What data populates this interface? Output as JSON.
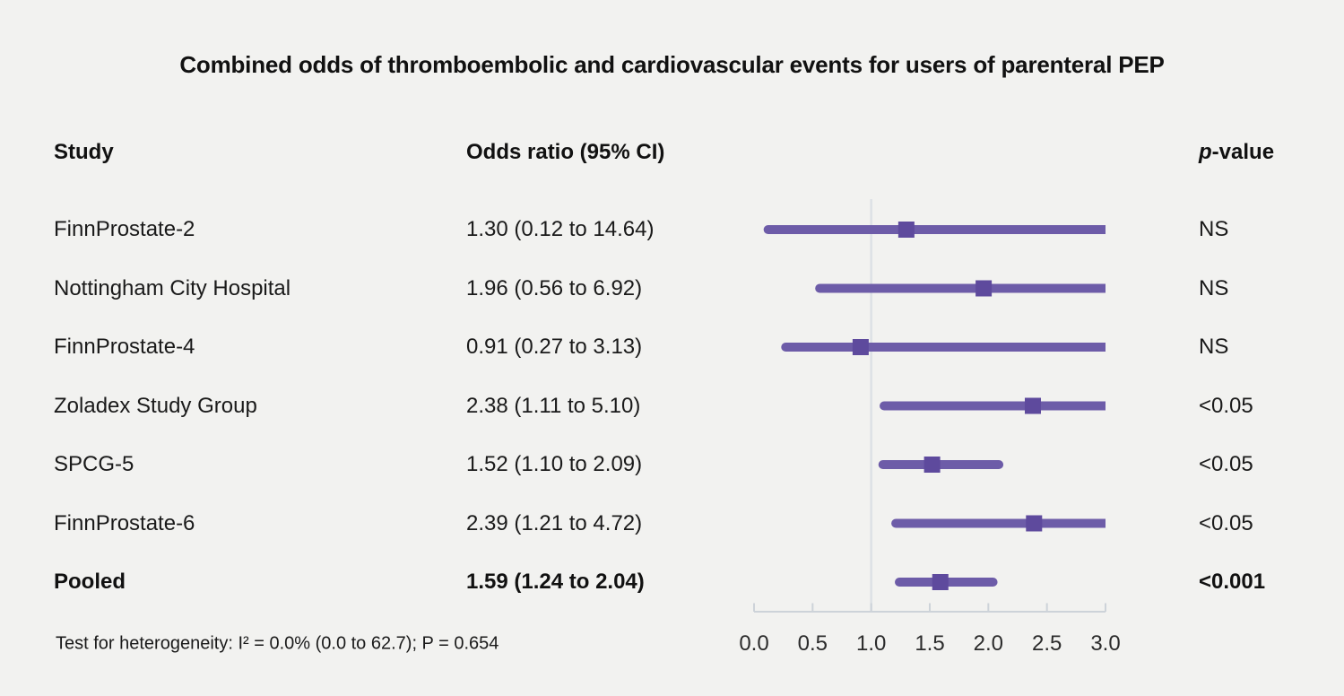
{
  "page": {
    "title": "Combined odds of thromboembolic and cardiovascular events for users of parenteral PEP",
    "background_color": "#f2f2f0"
  },
  "table": {
    "headers": {
      "study": "Study",
      "odds_ratio": "Odds ratio (95% CI)",
      "p_italic": "p",
      "p_suffix": "-value"
    }
  },
  "chart_data": {
    "type": "forest",
    "title": "Combined odds of thromboembolic and cardiovascular events for users of parenteral PEP",
    "xlabel": "",
    "xlim": [
      0.0,
      3.0
    ],
    "x_tick_values": [
      0.0,
      0.5,
      1.0,
      1.5,
      2.0,
      2.5,
      3.0
    ],
    "x_tick_labels": [
      "0.0",
      "0.5",
      "1.0",
      "1.5",
      "2.0",
      "2.5",
      "3.0"
    ],
    "reference_line_x": 1.0,
    "grid": false,
    "legend": "none",
    "rows": [
      {
        "study": "FinnProstate-2",
        "or": 1.3,
        "ci_low": 0.12,
        "ci_high": 14.64,
        "or_text": "1.30 (0.12 to 14.64)",
        "p": "NS",
        "bold": false
      },
      {
        "study": "Nottingham City Hospital",
        "or": 1.96,
        "ci_low": 0.56,
        "ci_high": 6.92,
        "or_text": "1.96 (0.56 to 6.92)",
        "p": "NS",
        "bold": false
      },
      {
        "study": "FinnProstate-4",
        "or": 0.91,
        "ci_low": 0.27,
        "ci_high": 3.13,
        "or_text": "0.91 (0.27 to 3.13)",
        "p": "NS",
        "bold": false
      },
      {
        "study": "Zoladex Study Group",
        "or": 2.38,
        "ci_low": 1.11,
        "ci_high": 5.1,
        "or_text": "2.38 (1.11 to 5.10)",
        "p": "<0.05",
        "bold": false
      },
      {
        "study": "SPCG-5",
        "or": 1.52,
        "ci_low": 1.1,
        "ci_high": 2.09,
        "or_text": "1.52 (1.10 to 2.09)",
        "p": "<0.05",
        "bold": false
      },
      {
        "study": "FinnProstate-6",
        "or": 2.39,
        "ci_low": 1.21,
        "ci_high": 4.72,
        "or_text": "2.39 (1.21 to 4.72)",
        "p": "<0.05",
        "bold": false
      },
      {
        "study": "Pooled",
        "or": 1.59,
        "ci_low": 1.24,
        "ci_high": 2.04,
        "or_text": "1.59 (1.24 to 2.04)",
        "p": "<0.001",
        "bold": true
      }
    ],
    "colors": {
      "ci_line": "#6d5ca8",
      "marker": "#5e4a9d",
      "reference_line": "#dde1e5",
      "axis": "#cdd3d9",
      "tick_label": "#2b2b2b"
    }
  },
  "footnote": "Test for heterogeneity: I² = 0.0% (0.0 to 62.7); P = 0.654"
}
